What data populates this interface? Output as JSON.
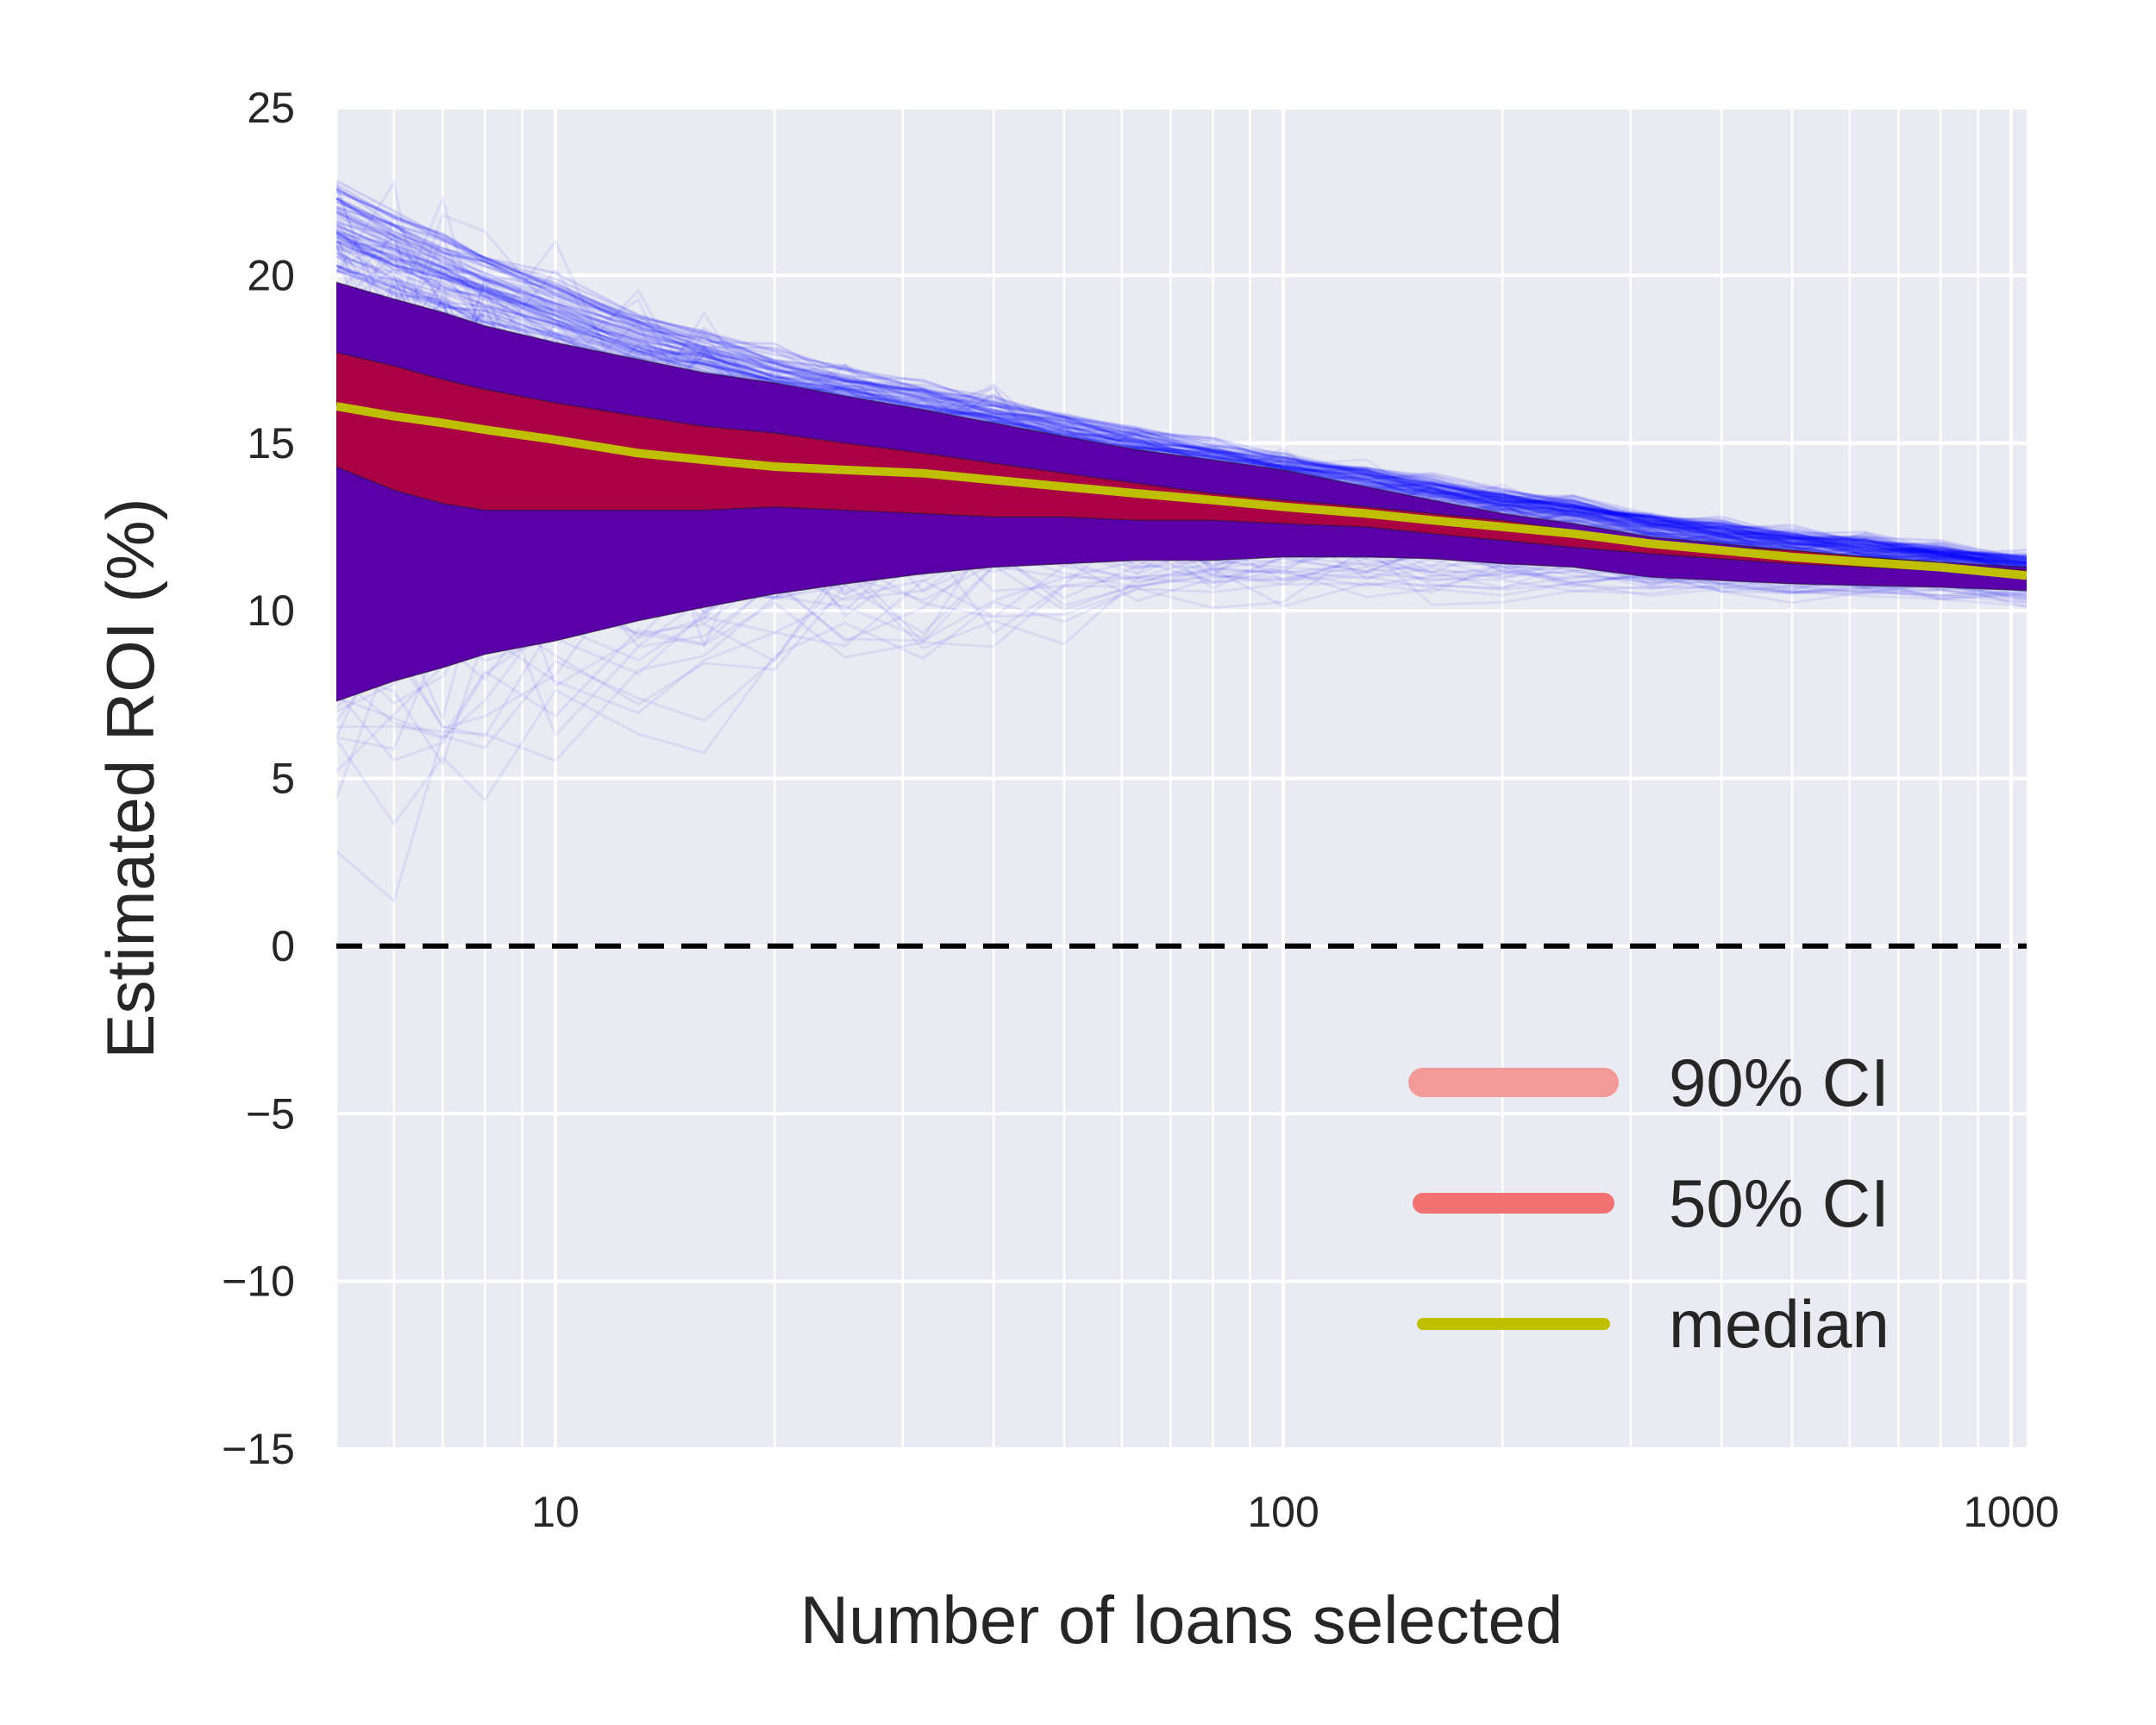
{
  "chart_data": {
    "type": "line",
    "xlabel": "Number of loans selected",
    "ylabel": "Estimated ROI (%)",
    "x_scale": "log",
    "xlim": [
      5,
      1050
    ],
    "ylim": [
      -15,
      25
    ],
    "x_ticks": [
      10,
      100,
      1000
    ],
    "y_ticks": [
      -15,
      -10,
      -5,
      0,
      5,
      10,
      15,
      20,
      25
    ],
    "grid": true,
    "legend_position": "lower-right",
    "reference_line": {
      "y": 0,
      "style": "dashed",
      "color": "#000000"
    },
    "x": [
      5,
      6,
      7,
      8,
      10,
      13,
      16,
      20,
      25,
      32,
      40,
      50,
      63,
      80,
      100,
      130,
      160,
      200,
      250,
      320,
      400,
      500,
      630,
      800,
      1050
    ],
    "series": [
      {
        "name": "90% CI",
        "kind": "band",
        "color": "#5a00a8",
        "lower": [
          7.3,
          7.9,
          8.3,
          8.7,
          9.1,
          9.7,
          10.1,
          10.5,
          10.8,
          11.1,
          11.3,
          11.4,
          11.5,
          11.5,
          11.6,
          11.6,
          11.55,
          11.4,
          11.3,
          11.0,
          10.9,
          10.8,
          10.75,
          10.7,
          10.6
        ],
        "upper": [
          19.8,
          19.3,
          18.9,
          18.5,
          18.0,
          17.5,
          17.1,
          16.8,
          16.4,
          16.0,
          15.6,
          15.2,
          14.8,
          14.5,
          14.2,
          13.7,
          13.3,
          12.9,
          12.6,
          12.2,
          12.0,
          11.8,
          11.6,
          11.45,
          11.3
        ]
      },
      {
        "name": "50% CI",
        "kind": "band",
        "color": "#aa0044",
        "lower": [
          14.3,
          13.6,
          13.2,
          13.0,
          13.0,
          13.0,
          13.0,
          13.1,
          13.0,
          12.9,
          12.8,
          12.8,
          12.7,
          12.7,
          12.6,
          12.5,
          12.3,
          12.1,
          11.9,
          11.7,
          11.55,
          11.4,
          11.3,
          11.2,
          10.95
        ],
        "upper": [
          17.7,
          17.3,
          16.9,
          16.6,
          16.2,
          15.8,
          15.5,
          15.3,
          15.0,
          14.7,
          14.4,
          14.1,
          13.8,
          13.5,
          13.3,
          13.1,
          12.9,
          12.7,
          12.4,
          12.1,
          11.9,
          11.8,
          11.6,
          11.4,
          11.2
        ]
      },
      {
        "name": "median",
        "kind": "line",
        "color": "#bfbf00",
        "values": [
          16.1,
          15.8,
          15.6,
          15.4,
          15.1,
          14.7,
          14.5,
          14.3,
          14.2,
          14.1,
          13.9,
          13.7,
          13.5,
          13.3,
          13.1,
          12.9,
          12.7,
          12.5,
          12.3,
          12.0,
          11.8,
          11.6,
          11.45,
          11.3,
          11.05
        ]
      }
    ],
    "simulation_traces": {
      "color": "#0000ff",
      "description_hidden": false
    },
    "legend": [
      {
        "label": "90% CI",
        "color": "#f29a9a"
      },
      {
        "label": "50% CI",
        "color": "#f07272"
      },
      {
        "label": "median",
        "color": "#bfbf00"
      }
    ]
  }
}
